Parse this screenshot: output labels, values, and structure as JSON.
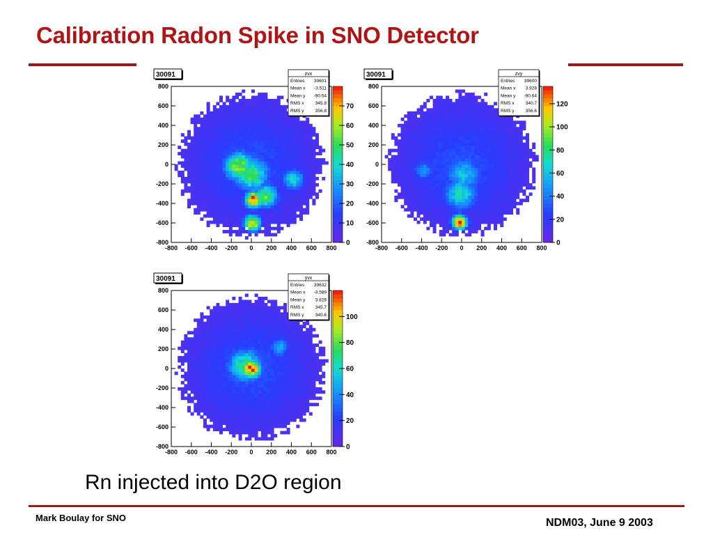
{
  "slide": {
    "title": "Calibration Radon Spike in SNO Detector",
    "caption": "Rn injected into D2O region",
    "footer_left": "Mark Boulay for SNO",
    "footer_right": "NDM03, June 9 2003",
    "title_color": "#b01414",
    "rule_color": "#9a1a1a"
  },
  "chart_data": [
    {
      "type": "heatmap",
      "run_label": "30091",
      "title": "zvx",
      "xlim": [
        -800,
        800
      ],
      "ylim": [
        -800,
        800
      ],
      "x_ticks": [
        "-800",
        "-600",
        "-400",
        "-200",
        "0",
        "200",
        "400",
        "600",
        "800"
      ],
      "y_ticks": [
        "-800",
        "-600",
        "-400",
        "-200",
        "0",
        "200",
        "400",
        "600",
        "800"
      ],
      "zlim": [
        0,
        80
      ],
      "z_ticks": [
        "0",
        "10",
        "20",
        "30",
        "40",
        "50",
        "60",
        "70"
      ],
      "stats": [
        {
          "label": "Entries",
          "value": "39601"
        },
        {
          "label": "Mean x",
          "value": "-3.511"
        },
        {
          "label": "Mean y",
          "value": "-90.54"
        },
        {
          "label": "RMS x",
          "value": "345.8"
        },
        {
          "label": "RMS y",
          "value": "356.8"
        }
      ],
      "hotspots": [
        {
          "x": -120,
          "y": -20,
          "z": 58,
          "w": 110
        },
        {
          "x": 0,
          "y": -100,
          "z": 50,
          "w": 130
        },
        {
          "x": 20,
          "y": -360,
          "z": 80,
          "w": 60
        },
        {
          "x": 10,
          "y": -600,
          "z": 70,
          "w": 60
        },
        {
          "x": 140,
          "y": -320,
          "z": 52,
          "w": 90
        },
        {
          "x": 420,
          "y": -150,
          "z": 40,
          "w": 80
        }
      ]
    },
    {
      "type": "heatmap",
      "run_label": "30091",
      "title": "zvy",
      "xlim": [
        -800,
        800
      ],
      "ylim": [
        -800,
        800
      ],
      "x_ticks": [
        "-800",
        "-600",
        "-400",
        "-200",
        "0",
        "200",
        "400",
        "600",
        "800"
      ],
      "y_ticks": [
        "-800",
        "-600",
        "-400",
        "-200",
        "0",
        "200",
        "400",
        "600",
        "800"
      ],
      "zlim": [
        0,
        135
      ],
      "z_ticks": [
        "0",
        "20",
        "40",
        "60",
        "80",
        "100",
        "120"
      ],
      "stats": [
        {
          "label": "Entries",
          "value": "39600"
        },
        {
          "label": "Mean x",
          "value": "3.928"
        },
        {
          "label": "Mean y",
          "value": "-90.64"
        },
        {
          "label": "RMS x",
          "value": "340.7"
        },
        {
          "label": "RMS y",
          "value": "356.6"
        }
      ],
      "hotspots": [
        {
          "x": -20,
          "y": -590,
          "z": 135,
          "w": 55
        },
        {
          "x": -10,
          "y": -300,
          "z": 70,
          "w": 120
        },
        {
          "x": 20,
          "y": -100,
          "z": 60,
          "w": 130
        },
        {
          "x": -380,
          "y": -60,
          "z": 45,
          "w": 80
        }
      ]
    },
    {
      "type": "heatmap",
      "run_label": "30091",
      "title": "yvx",
      "xlim": [
        -800,
        800
      ],
      "ylim": [
        -800,
        800
      ],
      "x_ticks": [
        "-800",
        "-600",
        "-400",
        "-200",
        "0",
        "200",
        "400",
        "600",
        "800"
      ],
      "y_ticks": [
        "-800",
        "-600",
        "-400",
        "-200",
        "0",
        "200",
        "400",
        "600",
        "800"
      ],
      "zlim": [
        0,
        120
      ],
      "z_ticks": [
        "0",
        "20",
        "40",
        "60",
        "80",
        "100"
      ],
      "stats": [
        {
          "label": "Entries",
          "value": "39632"
        },
        {
          "label": "Mean x",
          "value": "-3.589"
        },
        {
          "label": "Mean y",
          "value": "3.828"
        },
        {
          "label": "RMS x",
          "value": "345.7"
        },
        {
          "label": "RMS y",
          "value": "340.6"
        }
      ],
      "hotspots": [
        {
          "x": 0,
          "y": 0,
          "z": 120,
          "w": 70
        },
        {
          "x": -60,
          "y": 30,
          "z": 70,
          "w": 130
        },
        {
          "x": 280,
          "y": 220,
          "z": 50,
          "w": 70
        }
      ]
    }
  ]
}
